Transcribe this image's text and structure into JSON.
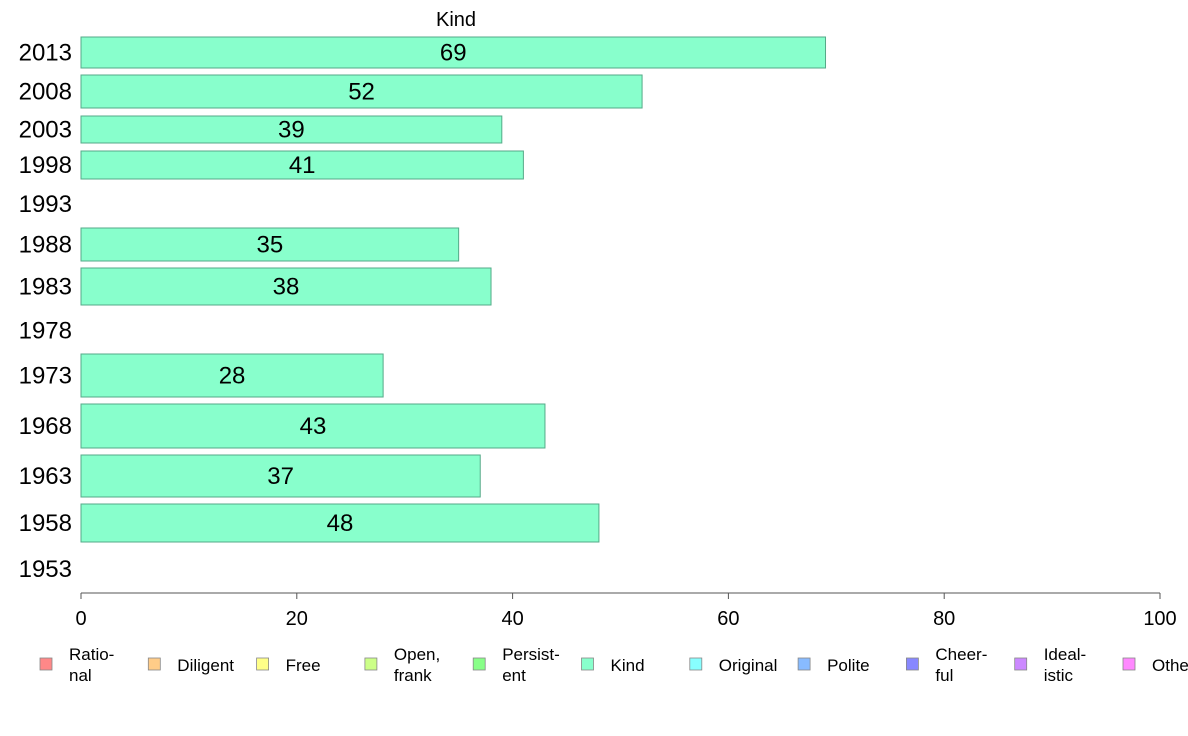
{
  "chart_data": {
    "type": "bar",
    "orientation": "horizontal",
    "title": "Kind",
    "xlabel": "",
    "ylabel": "",
    "categories": [
      "2013",
      "2008",
      "2003",
      "1998",
      "1993",
      "1988",
      "1983",
      "1978",
      "1973",
      "1968",
      "1963",
      "1958",
      "1953"
    ],
    "values": [
      69,
      52,
      39,
      41,
      null,
      35,
      38,
      null,
      28,
      43,
      37,
      48,
      null
    ],
    "data_labels": [
      "69",
      "52",
      "39",
      "41",
      "",
      "35",
      "38",
      "",
      "28",
      "43",
      "37",
      "48",
      ""
    ],
    "xlim": [
      0,
      100
    ],
    "xticks": [
      0,
      20,
      40,
      60,
      80,
      100
    ],
    "grid": false,
    "bar_color": "#88ffcc",
    "legend_placement": "bottom",
    "legend": [
      {
        "label": [
          "Ratio-",
          "nal"
        ],
        "color": "#ff8888"
      },
      {
        "label": [
          "Diligent"
        ],
        "color": "#ffcc88"
      },
      {
        "label": [
          "Free"
        ],
        "color": "#ffff88"
      },
      {
        "label": [
          "Open,",
          "frank"
        ],
        "color": "#ccff88"
      },
      {
        "label": [
          "Persist-",
          "ent"
        ],
        "color": "#88ff88"
      },
      {
        "label": [
          "Kind"
        ],
        "color": "#88ffcc"
      },
      {
        "label": [
          "Original"
        ],
        "color": "#88ffff"
      },
      {
        "label": [
          "Polite"
        ],
        "color": "#88bbff"
      },
      {
        "label": [
          "Cheer-",
          "ful"
        ],
        "color": "#8888ff"
      },
      {
        "label": [
          "Ideal-",
          "istic"
        ],
        "color": "#cc88ff"
      },
      {
        "label": [
          "Other"
        ],
        "color": "#ff88ff"
      }
    ]
  }
}
